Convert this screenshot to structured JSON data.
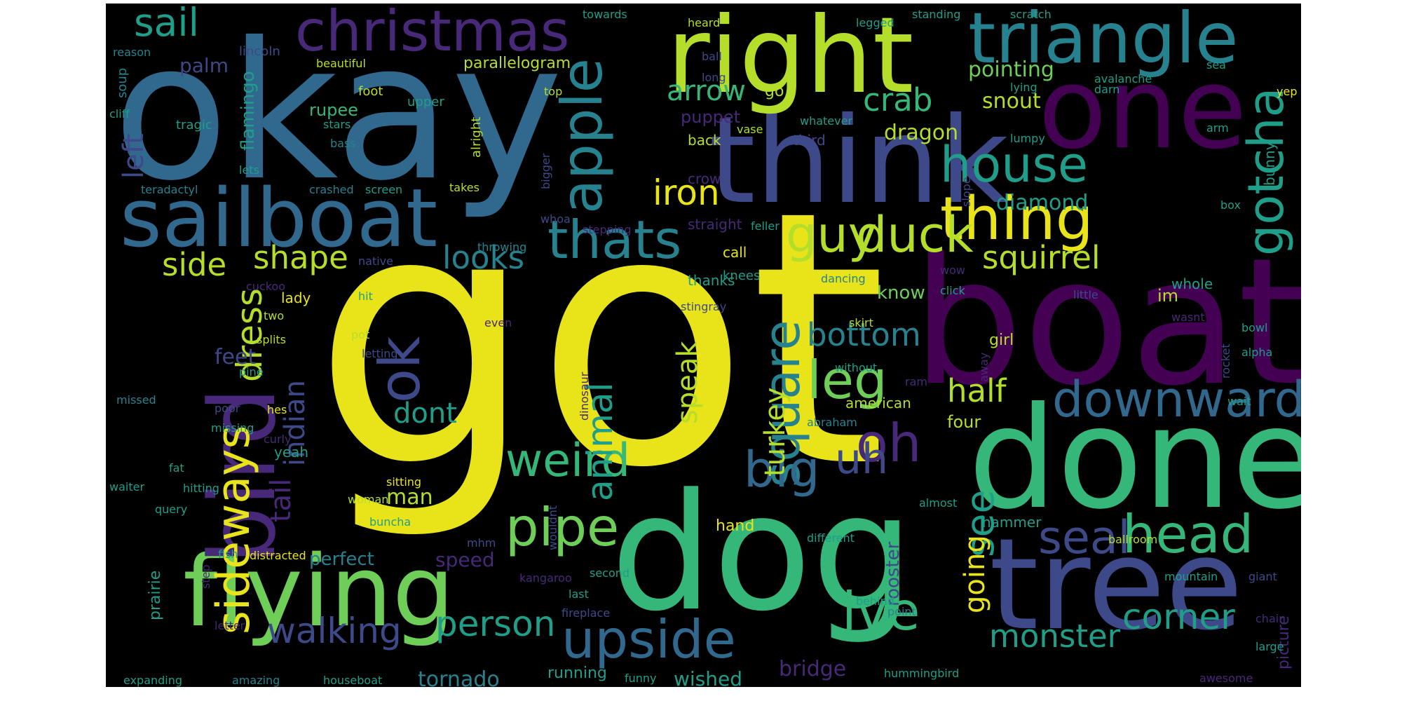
{
  "palette": {
    "yellow": "#e8e419",
    "lime": "#b5de2b",
    "green": "#6ece58",
    "teal_green": "#35b779",
    "teal": "#1f9e89",
    "cyan_blue": "#26828e",
    "blue": "#31688e",
    "indigo": "#3e4989",
    "purple": "#482878",
    "dark_purple": "#440154"
  },
  "words": [
    {
      "id": "got",
      "text": "got"
    },
    {
      "id": "okay",
      "text": "okay"
    },
    {
      "id": "boat",
      "text": "boat"
    },
    {
      "id": "dog",
      "text": "dog"
    },
    {
      "id": "done",
      "text": "done"
    },
    {
      "id": "tree",
      "text": "tree"
    },
    {
      "id": "think",
      "text": "think"
    },
    {
      "id": "one",
      "text": "one"
    },
    {
      "id": "right",
      "text": "right"
    },
    {
      "id": "flying",
      "text": "flying"
    },
    {
      "id": "bird",
      "text": "bird"
    },
    {
      "id": "sailboat",
      "text": "sailboat"
    },
    {
      "id": "triangle",
      "text": "triangle"
    },
    {
      "id": "christmas",
      "text": "christmas"
    },
    {
      "id": "apple",
      "text": "apple"
    },
    {
      "id": "thing",
      "text": "thing"
    },
    {
      "id": "thats",
      "text": "thats"
    },
    {
      "id": "upside",
      "text": "upside"
    },
    {
      "id": "gotcha",
      "text": "gotcha"
    },
    {
      "id": "guy",
      "text": "guy"
    },
    {
      "id": "duck",
      "text": "duck"
    },
    {
      "id": "house",
      "text": "house"
    },
    {
      "id": "downward",
      "text": "downward"
    },
    {
      "id": "head",
      "text": "head"
    },
    {
      "id": "sideways",
      "text": "sideways"
    },
    {
      "id": "ok",
      "text": "ok"
    },
    {
      "id": "square",
      "text": "square"
    },
    {
      "id": "weird",
      "text": "weird"
    },
    {
      "id": "big",
      "text": "big"
    },
    {
      "id": "pipe",
      "text": "pipe"
    },
    {
      "id": "leg",
      "text": "leg"
    },
    {
      "id": "oh",
      "text": "oh"
    },
    {
      "id": "ive",
      "text": "ive"
    },
    {
      "id": "seal",
      "text": "seal"
    },
    {
      "id": "person",
      "text": "person"
    },
    {
      "id": "walking",
      "text": "walking"
    },
    {
      "id": "monster",
      "text": "monster"
    },
    {
      "id": "corner",
      "text": "corner"
    },
    {
      "id": "uh",
      "text": "uh"
    },
    {
      "id": "see",
      "text": "see"
    },
    {
      "id": "sail",
      "text": "sail"
    },
    {
      "id": "iron",
      "text": "iron"
    },
    {
      "id": "squirrel",
      "text": "squirrel"
    },
    {
      "id": "dress",
      "text": "dress"
    },
    {
      "id": "animal",
      "text": "animal"
    },
    {
      "id": "side",
      "text": "side"
    },
    {
      "id": "shape",
      "text": "shape"
    },
    {
      "id": "looks",
      "text": "looks"
    },
    {
      "id": "arrow",
      "text": "arrow"
    },
    {
      "id": "crab",
      "text": "crab"
    },
    {
      "id": "half",
      "text": "half"
    },
    {
      "id": "bottom",
      "text": "bottom"
    },
    {
      "id": "dont",
      "text": "dont"
    },
    {
      "id": "tail",
      "text": "tail"
    },
    {
      "id": "indian",
      "text": "indian"
    },
    {
      "id": "speak",
      "text": "speak"
    },
    {
      "id": "turkey",
      "text": "turkey"
    },
    {
      "id": "going",
      "text": "going"
    },
    {
      "id": "left",
      "text": "left"
    },
    {
      "id": "pointing",
      "text": "pointing"
    },
    {
      "id": "snout",
      "text": "snout"
    },
    {
      "id": "dragon",
      "text": "dragon"
    },
    {
      "id": "diamond",
      "text": "diamond"
    },
    {
      "id": "man",
      "text": "man"
    },
    {
      "id": "bridge",
      "text": "bridge"
    },
    {
      "id": "tornado",
      "text": "tornado"
    },
    {
      "id": "wished",
      "text": "wished"
    },
    {
      "id": "palm",
      "text": "palm"
    },
    {
      "id": "flamingo",
      "text": "flamingo"
    },
    {
      "id": "rupee",
      "text": "rupee"
    },
    {
      "id": "puppet",
      "text": "puppet"
    },
    {
      "id": "parallelogram",
      "text": "parallelogram"
    },
    {
      "id": "feet",
      "text": "feet"
    },
    {
      "id": "perfect",
      "text": "perfect"
    },
    {
      "id": "speed",
      "text": "speed"
    },
    {
      "id": "rooster",
      "text": "rooster"
    },
    {
      "id": "know",
      "text": "know"
    },
    {
      "id": "four",
      "text": "four"
    },
    {
      "id": "im",
      "text": "im"
    },
    {
      "id": "hand",
      "text": "hand"
    },
    {
      "id": "prairie",
      "text": "prairie"
    },
    {
      "id": "lady",
      "text": "lady"
    },
    {
      "id": "yeah",
      "text": "yeah"
    },
    {
      "id": "american",
      "text": "american"
    },
    {
      "id": "whole",
      "text": "whole"
    },
    {
      "id": "hammer",
      "text": "hammer"
    },
    {
      "id": "running",
      "text": "running"
    },
    {
      "id": "girl",
      "text": "girl"
    },
    {
      "id": "picture",
      "text": "picture"
    },
    {
      "id": "bunny",
      "text": "bunny"
    },
    {
      "id": "back",
      "text": "back"
    },
    {
      "id": "crow",
      "text": "crow"
    },
    {
      "id": "straight",
      "text": "straight"
    },
    {
      "id": "thanks",
      "text": "thanks"
    },
    {
      "id": "call",
      "text": "call"
    },
    {
      "id": "knees",
      "text": "knees"
    },
    {
      "id": "go",
      "text": "go"
    },
    {
      "id": "third",
      "text": "third"
    },
    {
      "id": "lincoln",
      "text": "lincoln"
    },
    {
      "id": "reason",
      "text": "reason"
    },
    {
      "id": "soup",
      "text": "soup"
    },
    {
      "id": "beautiful",
      "text": "beautiful"
    },
    {
      "id": "cliff",
      "text": "cliff"
    },
    {
      "id": "tragic",
      "text": "tragic"
    },
    {
      "id": "foot",
      "text": "foot"
    },
    {
      "id": "upper",
      "text": "upper"
    },
    {
      "id": "stars",
      "text": "stars"
    },
    {
      "id": "bass",
      "text": "bass"
    },
    {
      "id": "lets",
      "text": "lets"
    },
    {
      "id": "teradactyl",
      "text": "teradactyl"
    },
    {
      "id": "crashed",
      "text": "crashed"
    },
    {
      "id": "screen",
      "text": "screen"
    },
    {
      "id": "takes",
      "text": "takes"
    },
    {
      "id": "alright",
      "text": "alright"
    },
    {
      "id": "bigger",
      "text": "bigger"
    },
    {
      "id": "whoa",
      "text": "whoa"
    },
    {
      "id": "top",
      "text": "top"
    },
    {
      "id": "towards",
      "text": "towards"
    },
    {
      "id": "heard",
      "text": "heard"
    },
    {
      "id": "legged",
      "text": "legged"
    },
    {
      "id": "standing",
      "text": "standing"
    },
    {
      "id": "scratch",
      "text": "scratch"
    },
    {
      "id": "ball",
      "text": "ball"
    },
    {
      "id": "long",
      "text": "long"
    },
    {
      "id": "darn",
      "text": "darn"
    },
    {
      "id": "sea",
      "text": "sea"
    },
    {
      "id": "avalanche",
      "text": "avalanche"
    },
    {
      "id": "lying",
      "text": "lying"
    },
    {
      "id": "yep",
      "text": "yep"
    },
    {
      "id": "whatever",
      "text": "whatever"
    },
    {
      "id": "vase",
      "text": "vase"
    },
    {
      "id": "arm",
      "text": "arm"
    },
    {
      "id": "lumpy",
      "text": "lumpy"
    },
    {
      "id": "slope",
      "text": "slope"
    },
    {
      "id": "box",
      "text": "box"
    },
    {
      "id": "stepping",
      "text": "stepping"
    },
    {
      "id": "feller",
      "text": "feller"
    },
    {
      "id": "throwing",
      "text": "throwing"
    },
    {
      "id": "native",
      "text": "native"
    },
    {
      "id": "cuckoo",
      "text": "cuckoo"
    },
    {
      "id": "hit",
      "text": "hit"
    },
    {
      "id": "dancing",
      "text": "dancing"
    },
    {
      "id": "stingray",
      "text": "stingray"
    },
    {
      "id": "wow",
      "text": "wow"
    },
    {
      "id": "click",
      "text": "click"
    },
    {
      "id": "little",
      "text": "little"
    },
    {
      "id": "wasnt",
      "text": "wasnt"
    },
    {
      "id": "two",
      "text": "two"
    },
    {
      "id": "splits",
      "text": "splits"
    },
    {
      "id": "pot",
      "text": "pot"
    },
    {
      "id": "letting",
      "text": "letting"
    },
    {
      "id": "pine",
      "text": "pine"
    },
    {
      "id": "even",
      "text": "even"
    },
    {
      "id": "skirt",
      "text": "skirt"
    },
    {
      "id": "without",
      "text": "without"
    },
    {
      "id": "ram",
      "text": "ram"
    },
    {
      "id": "away",
      "text": "away"
    },
    {
      "id": "rocket",
      "text": "rocket"
    },
    {
      "id": "bowl",
      "text": "bowl"
    },
    {
      "id": "alpha",
      "text": "alpha"
    },
    {
      "id": "missed",
      "text": "missed"
    },
    {
      "id": "poor",
      "text": "poor"
    },
    {
      "id": "missing",
      "text": "missing"
    },
    {
      "id": "hes",
      "text": "hes"
    },
    {
      "id": "curly",
      "text": "curly"
    },
    {
      "id": "abraham",
      "text": "abraham"
    },
    {
      "id": "wait",
      "text": "wait"
    },
    {
      "id": "fat",
      "text": "fat"
    },
    {
      "id": "hitting",
      "text": "hitting"
    },
    {
      "id": "waiter",
      "text": "waiter"
    },
    {
      "id": "query",
      "text": "query"
    },
    {
      "id": "sitting",
      "text": "sitting"
    },
    {
      "id": "woman",
      "text": "woman"
    },
    {
      "id": "buncha",
      "text": "buncha"
    },
    {
      "id": "dinosaur",
      "text": "dinosaur"
    },
    {
      "id": "almost",
      "text": "almost"
    },
    {
      "id": "mhm",
      "text": "mhm"
    },
    {
      "id": "wouldnt",
      "text": "wouldnt"
    },
    {
      "id": "ballroom",
      "text": "ballroom"
    },
    {
      "id": "fish",
      "text": "fish"
    },
    {
      "id": "distracted",
      "text": "distracted"
    },
    {
      "id": "different",
      "text": "different"
    },
    {
      "id": "kangaroo",
      "text": "kangaroo"
    },
    {
      "id": "second",
      "text": "second"
    },
    {
      "id": "mountain",
      "text": "mountain"
    },
    {
      "id": "giant",
      "text": "giant"
    },
    {
      "id": "step",
      "text": "step"
    },
    {
      "id": "letter",
      "text": "letter"
    },
    {
      "id": "last",
      "text": "last"
    },
    {
      "id": "behind",
      "text": "behind"
    },
    {
      "id": "fireplace",
      "text": "fireplace"
    },
    {
      "id": "point",
      "text": "point"
    },
    {
      "id": "chair",
      "text": "chair"
    },
    {
      "id": "large",
      "text": "large"
    },
    {
      "id": "expanding",
      "text": "expanding"
    },
    {
      "id": "amazing",
      "text": "amazing"
    },
    {
      "id": "houseboat",
      "text": "houseboat"
    },
    {
      "id": "funny",
      "text": "funny"
    },
    {
      "id": "hummingbird",
      "text": "hummingbird"
    },
    {
      "id": "awesome",
      "text": "awesome"
    }
  ]
}
